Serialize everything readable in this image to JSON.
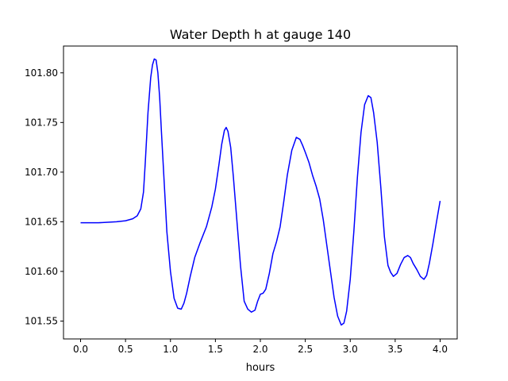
{
  "chart_data": {
    "type": "line",
    "title": "Water Depth h at gauge 140",
    "xlabel": "hours",
    "ylabel": "",
    "xlim": [
      -0.19,
      4.19
    ],
    "ylim": [
      101.532,
      101.827
    ],
    "xticks": [
      0.0,
      0.5,
      1.0,
      1.5,
      2.0,
      2.5,
      3.0,
      3.5,
      4.0
    ],
    "xtick_labels": [
      "0.0",
      "0.5",
      "1.0",
      "1.5",
      "2.0",
      "2.5",
      "3.0",
      "3.5",
      "4.0"
    ],
    "yticks": [
      101.55,
      101.6,
      101.65,
      101.7,
      101.75,
      101.8
    ],
    "ytick_labels": [
      "101.55",
      "101.60",
      "101.65",
      "101.70",
      "101.75",
      "101.80"
    ],
    "grid": false,
    "series": [
      {
        "name": "",
        "color": "#0000ff",
        "x": [
          0.0,
          0.2,
          0.4,
          0.5,
          0.58,
          0.63,
          0.67,
          0.7,
          0.72,
          0.75,
          0.78,
          0.8,
          0.82,
          0.84,
          0.86,
          0.88,
          0.9,
          0.93,
          0.96,
          1.0,
          1.04,
          1.08,
          1.12,
          1.15,
          1.18,
          1.22,
          1.27,
          1.33,
          1.4,
          1.46,
          1.5,
          1.54,
          1.57,
          1.6,
          1.62,
          1.64,
          1.67,
          1.7,
          1.74,
          1.78,
          1.82,
          1.86,
          1.9,
          1.94,
          1.97,
          2.0,
          2.03,
          2.06,
          2.1,
          2.14,
          2.18,
          2.22,
          2.26,
          2.3,
          2.35,
          2.4,
          2.44,
          2.47,
          2.5,
          2.54,
          2.58,
          2.62,
          2.66,
          2.7,
          2.74,
          2.78,
          2.82,
          2.86,
          2.9,
          2.93,
          2.96,
          3.0,
          3.04,
          3.08,
          3.12,
          3.16,
          3.2,
          3.23,
          3.26,
          3.3,
          3.34,
          3.38,
          3.42,
          3.45,
          3.48,
          3.52,
          3.56,
          3.6,
          3.64,
          3.67,
          3.7,
          3.74,
          3.78,
          3.82,
          3.85,
          3.88,
          3.92,
          3.96,
          4.0
        ],
        "y": [
          101.649,
          101.649,
          101.65,
          101.651,
          101.653,
          101.656,
          101.663,
          101.68,
          101.71,
          101.76,
          101.795,
          101.808,
          101.814,
          101.813,
          101.8,
          101.775,
          101.74,
          101.69,
          101.64,
          101.6,
          101.573,
          101.563,
          101.562,
          101.568,
          101.578,
          101.595,
          101.614,
          101.629,
          101.645,
          101.665,
          101.683,
          101.708,
          101.728,
          101.742,
          101.745,
          101.741,
          101.725,
          101.695,
          101.65,
          101.605,
          101.57,
          101.562,
          101.559,
          101.561,
          101.57,
          101.577,
          101.578,
          101.582,
          101.598,
          101.618,
          101.63,
          101.645,
          101.67,
          101.697,
          101.722,
          101.735,
          101.733,
          101.727,
          101.72,
          101.71,
          101.697,
          101.686,
          101.673,
          101.652,
          101.626,
          101.6,
          101.574,
          101.555,
          101.546,
          101.548,
          101.56,
          101.592,
          101.64,
          101.695,
          101.74,
          101.768,
          101.777,
          101.775,
          101.76,
          101.73,
          101.685,
          101.635,
          101.606,
          101.599,
          101.595,
          101.598,
          101.607,
          101.614,
          101.616,
          101.614,
          101.608,
          101.602,
          101.595,
          101.592,
          101.596,
          101.608,
          101.628,
          101.65,
          101.671
        ]
      }
    ]
  }
}
